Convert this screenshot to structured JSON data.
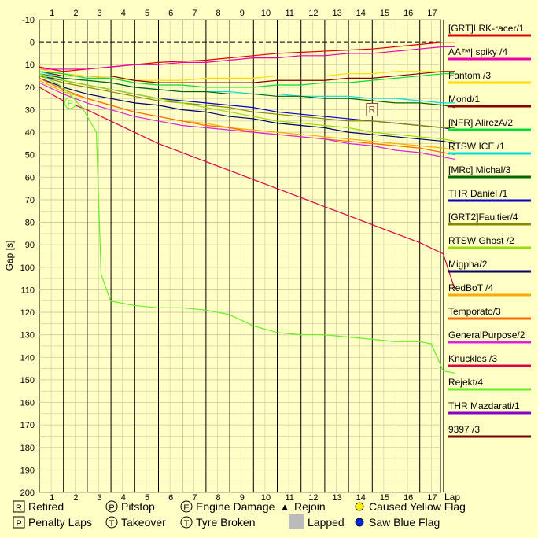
{
  "chart_data": {
    "type": "line",
    "ylabel": "Gap [s]",
    "xlabel_right": "Lap",
    "x_ticks": [
      1,
      2,
      3,
      4,
      5,
      6,
      7,
      8,
      9,
      10,
      11,
      12,
      13,
      14,
      15,
      16,
      17
    ],
    "y_ticks": [
      -10,
      0,
      10,
      20,
      30,
      40,
      50,
      60,
      70,
      80,
      90,
      100,
      110,
      120,
      130,
      140,
      150,
      160,
      170,
      180,
      190,
      200
    ],
    "ylim": [
      -10,
      200
    ],
    "xlim": [
      0,
      17.5
    ],
    "y_inverted": true,
    "grid": true,
    "legend_placement": "right",
    "series": [
      {
        "name": "[GRT]LRK-racer/1",
        "color": "#dd0000",
        "x": [
          0,
          1,
          2,
          3,
          4,
          5,
          6,
          7,
          8,
          9,
          10,
          11,
          12,
          13,
          14,
          15,
          16,
          17,
          17.5
        ],
        "y": [
          11,
          13,
          12,
          11,
          10,
          9,
          8.5,
          8,
          7,
          6,
          5,
          4.5,
          4,
          3.5,
          3,
          2,
          1,
          0,
          0
        ]
      },
      {
        "name": "AA™| spiky /4",
        "color": "#ee00aa",
        "x": [
          0,
          1,
          2,
          3,
          4,
          5,
          6,
          7,
          8,
          9,
          10,
          11,
          12,
          13,
          14,
          15,
          16,
          17,
          17.5
        ],
        "y": [
          12,
          12,
          12,
          11,
          10,
          10,
          9,
          9,
          8,
          7,
          7,
          6,
          6,
          5,
          5,
          4,
          3,
          2,
          2
        ]
      },
      {
        "name": "Fantom /3",
        "color": "#ffdd00",
        "x": [
          0,
          1,
          2,
          3,
          4,
          5,
          6,
          7,
          8,
          9,
          10,
          11,
          12,
          13,
          14,
          15,
          16,
          17,
          17.5
        ],
        "y": [
          12,
          14,
          15,
          16,
          17,
          17,
          17,
          16,
          16,
          16,
          15,
          15,
          15,
          14,
          14,
          13,
          13,
          13,
          13
        ]
      },
      {
        "name": "Mond/1",
        "color": "#880000",
        "x": [
          0,
          1,
          2,
          3,
          4,
          5,
          6,
          7,
          8,
          9,
          10,
          11,
          12,
          13,
          14,
          15,
          16,
          17,
          17.5
        ],
        "y": [
          13,
          15,
          15,
          15,
          17,
          18,
          18,
          18,
          18,
          18,
          17,
          17,
          17,
          16,
          16,
          15,
          14,
          13,
          13
        ]
      },
      {
        "name": "[NFR] AlirezA/2",
        "color": "#00dd33",
        "x": [
          0,
          1,
          2,
          3,
          4,
          5,
          6,
          7,
          8,
          9,
          10,
          11,
          12,
          13,
          14,
          15,
          16,
          17,
          17.5
        ],
        "y": [
          13,
          14,
          16,
          16,
          18,
          19,
          19,
          20,
          20,
          20,
          19,
          19,
          18,
          18,
          17,
          16,
          15,
          14,
          14
        ]
      },
      {
        "name": "RTSW ICE /1",
        "color": "#00dddd",
        "x": [
          0,
          1,
          2,
          3,
          4,
          5,
          6,
          7,
          8,
          9,
          10,
          11,
          12,
          13,
          14,
          15,
          16,
          17,
          17.5
        ],
        "y": [
          13,
          16,
          17,
          18,
          20,
          21,
          22,
          22,
          22,
          23,
          23,
          24,
          24,
          24,
          25,
          25,
          26,
          27,
          27
        ]
      },
      {
        "name": "[MRc] Michal/3",
        "color": "#006600",
        "x": [
          0,
          1,
          2,
          3,
          4,
          5,
          6,
          7,
          8,
          9,
          10,
          11,
          12,
          13,
          14,
          15,
          16,
          17,
          17.5
        ],
        "y": [
          14,
          16,
          17,
          18,
          20,
          21,
          22,
          22,
          23,
          23,
          24,
          24,
          25,
          25,
          26,
          27,
          27,
          28,
          29
        ]
      },
      {
        "name": "THR Daniel /1",
        "color": "#0000cc",
        "x": [
          0,
          1,
          2,
          3,
          4,
          5,
          6,
          7,
          8,
          9,
          10,
          11,
          12,
          13,
          14,
          15,
          16,
          17,
          17.5
        ],
        "y": [
          15,
          17,
          19,
          21,
          23,
          25,
          26,
          27,
          28,
          29,
          31,
          32,
          33,
          34,
          35,
          36,
          37,
          38,
          39
        ]
      },
      {
        "name": "[GRT2]Faultier/4",
        "color": "#888800",
        "x": [
          0,
          1,
          2,
          3,
          4,
          5,
          6,
          7,
          8,
          9,
          10,
          11,
          12,
          13,
          14,
          15,
          16,
          17,
          17.5
        ],
        "y": [
          15,
          18,
          20,
          22,
          24,
          26,
          27,
          28,
          29,
          31,
          32,
          33,
          34,
          35,
          35,
          36,
          37,
          38,
          38
        ]
      },
      {
        "name": "RTSW Ghost /2",
        "color": "#99dd00",
        "x": [
          0,
          1,
          2,
          3,
          4,
          5,
          6,
          7,
          8,
          9,
          10,
          11,
          12,
          13,
          14,
          15,
          16,
          17,
          17.5
        ],
        "y": [
          14,
          17,
          19,
          21,
          23,
          25,
          27,
          29,
          31,
          33,
          35,
          36,
          37,
          38,
          40,
          41,
          42,
          43,
          44
        ]
      },
      {
        "name": "Migpha/2",
        "color": "#000066",
        "x": [
          0,
          1,
          2,
          3,
          4,
          5,
          6,
          7,
          8,
          9,
          10,
          11,
          12,
          13,
          14,
          15,
          16,
          17,
          17.5
        ],
        "y": [
          16,
          20,
          23,
          25,
          27,
          28,
          30,
          31,
          33,
          34,
          36,
          37,
          38,
          40,
          41,
          42,
          43,
          44,
          45
        ]
      },
      {
        "name": "RedBoT /4",
        "color": "#ffaa00",
        "x": [
          0,
          1,
          2,
          3,
          4,
          5,
          6,
          7,
          8,
          9,
          10,
          11,
          12,
          13,
          14,
          15,
          16,
          17,
          17.5
        ],
        "y": [
          17,
          22,
          25,
          28,
          31,
          33,
          35,
          36,
          38,
          39,
          40,
          41,
          42,
          43,
          44,
          45,
          46,
          47,
          48
        ]
      },
      {
        "name": "Temporato/3",
        "color": "#ff6600",
        "x": [
          0,
          1,
          2,
          3,
          4,
          5,
          6,
          7,
          8,
          9,
          10,
          11,
          12,
          13,
          14,
          15,
          16,
          17,
          17.5
        ],
        "y": [
          16,
          21,
          25,
          28,
          31,
          33,
          35,
          37,
          38,
          40,
          41,
          42,
          43,
          44,
          45,
          46,
          47,
          49,
          50
        ]
      },
      {
        "name": "GeneralPurpose/2",
        "color": "#dd22dd",
        "x": [
          0,
          1,
          2,
          3,
          4,
          5,
          6,
          7,
          8,
          9,
          10,
          11,
          12,
          13,
          14,
          15,
          16,
          17,
          17.5
        ],
        "y": [
          18,
          23,
          27,
          30,
          33,
          35,
          37,
          38,
          39,
          40,
          41,
          42,
          43,
          45,
          46,
          48,
          49,
          51,
          52
        ]
      },
      {
        "name": "Knuckles /3",
        "color": "#dd0044",
        "x": [
          0,
          1,
          2,
          3,
          4,
          5,
          6,
          7,
          8,
          9,
          10,
          11,
          12,
          13,
          14,
          15,
          16,
          17,
          17.5
        ],
        "y": [
          20,
          26,
          30,
          35,
          40,
          45,
          49,
          53,
          57,
          61,
          65,
          69,
          73,
          77,
          81,
          85,
          89,
          94,
          110
        ]
      },
      {
        "name": "Rejekt/4",
        "color": "#66ee22",
        "x": [
          0,
          1,
          1.8,
          2.4,
          2.6,
          3,
          4,
          5,
          6,
          7,
          8,
          9,
          10,
          11,
          12,
          13,
          14,
          15,
          16,
          16.5,
          17,
          17.5
        ],
        "y": [
          14,
          20,
          29,
          40,
          103,
          115,
          117,
          118,
          118,
          119,
          121,
          126,
          129,
          130,
          130,
          131,
          132,
          133,
          133,
          134,
          146,
          147
        ]
      },
      {
        "name": "THR Mazdarati/1",
        "color": "#8800cc",
        "x": [],
        "y": []
      },
      {
        "name": "9397 /3",
        "color": "#770000",
        "x": [],
        "y": []
      }
    ],
    "annotations": [
      {
        "label": "P",
        "meaning": "Pitstop",
        "series": "Rejekt/4",
        "x": 1.3,
        "y": 27
      },
      {
        "label": "R",
        "meaning": "Retired",
        "series": "THR Daniel /1",
        "x": 14,
        "y": 30
      }
    ],
    "key": [
      {
        "symbol": "R",
        "label": "Retired"
      },
      {
        "symbol": "P",
        "label": "Pitstop"
      },
      {
        "symbol": "E",
        "label": "Engine Damage"
      },
      {
        "symbol": "▲",
        "label": "Rejoin"
      },
      {
        "symbol": "yellow-dot",
        "label": "Caused Yellow Flag"
      },
      {
        "symbol": "P",
        "label": "Penalty Laps"
      },
      {
        "symbol": "T",
        "label": "Takeover"
      },
      {
        "symbol": "T",
        "label": "Tyre Broken"
      },
      {
        "symbol": "gray-square",
        "label": "Lapped"
      },
      {
        "symbol": "blue-dot",
        "label": "Saw Blue Flag"
      }
    ],
    "colors": {
      "background": "#ffffc6",
      "grid_major": "#000000",
      "grid_minor": "#c8c8a0",
      "leader_line": "#000000"
    }
  }
}
